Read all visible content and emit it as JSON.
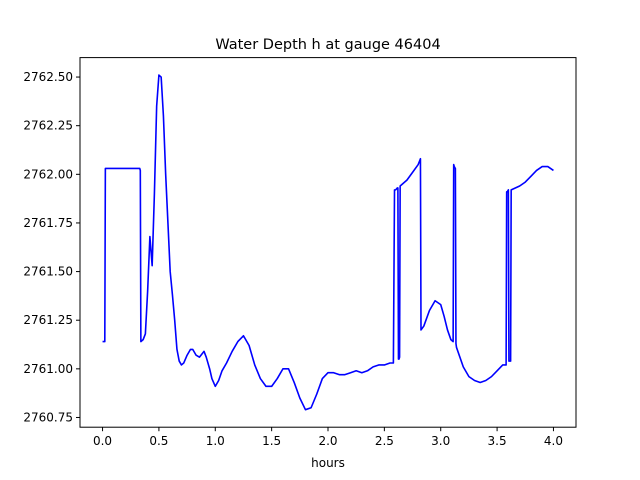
{
  "chart_data": {
    "type": "line",
    "title": "Water Depth h at gauge 46404",
    "xlabel": "hours",
    "ylabel": "",
    "xlim": [
      -0.2,
      4.2
    ],
    "ylim": [
      2760.7,
      2762.6
    ],
    "xticks": [
      0.0,
      0.5,
      1.0,
      1.5,
      2.0,
      2.5,
      3.0,
      3.5,
      4.0
    ],
    "xtick_labels": [
      "0.0",
      "0.5",
      "1.0",
      "1.5",
      "2.0",
      "2.5",
      "3.0",
      "3.5",
      "4.0"
    ],
    "yticks": [
      2760.75,
      2761.0,
      2761.25,
      2761.5,
      2761.75,
      2762.0,
      2762.25,
      2762.5
    ],
    "ytick_labels": [
      "2760.75",
      "2761.00",
      "2761.25",
      "2761.50",
      "2761.75",
      "2762.00",
      "2762.25",
      "2762.50"
    ],
    "grid": false,
    "series": [
      {
        "color": "#0000ff",
        "x": [
          0.0,
          0.02,
          0.025,
          0.1,
          0.2,
          0.3,
          0.33,
          0.335,
          0.34,
          0.36,
          0.38,
          0.4,
          0.42,
          0.44,
          0.46,
          0.48,
          0.5,
          0.52,
          0.54,
          0.56,
          0.58,
          0.6,
          0.62,
          0.64,
          0.66,
          0.68,
          0.7,
          0.72,
          0.75,
          0.78,
          0.8,
          0.83,
          0.86,
          0.9,
          0.92,
          0.95,
          0.97,
          1.0,
          1.03,
          1.06,
          1.1,
          1.15,
          1.2,
          1.25,
          1.3,
          1.35,
          1.4,
          1.45,
          1.5,
          1.55,
          1.6,
          1.65,
          1.7,
          1.75,
          1.8,
          1.85,
          1.9,
          1.95,
          2.0,
          2.05,
          2.1,
          2.15,
          2.2,
          2.25,
          2.3,
          2.35,
          2.4,
          2.45,
          2.5,
          2.55,
          2.58,
          2.59,
          2.6,
          2.615,
          2.62,
          2.625,
          2.63,
          2.635,
          2.64,
          2.7,
          2.75,
          2.8,
          2.82,
          2.825,
          2.85,
          2.9,
          2.95,
          3.0,
          3.03,
          3.06,
          3.09,
          3.11,
          3.115,
          3.12,
          3.13,
          3.135,
          3.14,
          3.2,
          3.25,
          3.3,
          3.35,
          3.4,
          3.45,
          3.5,
          3.55,
          3.58,
          3.585,
          3.59,
          3.6,
          3.605,
          3.61,
          3.62,
          3.625,
          3.7,
          3.75,
          3.8,
          3.85,
          3.9,
          3.95,
          4.0
        ],
        "y": [
          2761.14,
          2761.14,
          2762.03,
          2762.03,
          2762.03,
          2762.03,
          2762.03,
          2762.02,
          2761.14,
          2761.15,
          2761.18,
          2761.4,
          2761.68,
          2761.53,
          2761.9,
          2762.35,
          2762.51,
          2762.5,
          2762.3,
          2762.0,
          2761.75,
          2761.5,
          2761.38,
          2761.25,
          2761.1,
          2761.04,
          2761.02,
          2761.03,
          2761.07,
          2761.1,
          2761.1,
          2761.07,
          2761.06,
          2761.09,
          2761.06,
          2761.0,
          2760.95,
          2760.91,
          2760.94,
          2760.99,
          2761.03,
          2761.09,
          2761.14,
          2761.17,
          2761.12,
          2761.02,
          2760.95,
          2760.91,
          2760.91,
          2760.95,
          2761.0,
          2761.0,
          2760.93,
          2760.85,
          2760.79,
          2760.8,
          2760.87,
          2760.95,
          2760.98,
          2760.98,
          2760.97,
          2760.97,
          2760.98,
          2760.99,
          2760.98,
          2760.99,
          2761.01,
          2761.02,
          2761.02,
          2761.03,
          2761.03,
          2761.92,
          2761.92,
          2761.93,
          2761.93,
          2761.05,
          2761.05,
          2761.06,
          2761.94,
          2761.97,
          2762.01,
          2762.05,
          2762.08,
          2761.2,
          2761.22,
          2761.3,
          2761.35,
          2761.33,
          2761.27,
          2761.2,
          2761.15,
          2761.14,
          2762.05,
          2762.04,
          2762.03,
          2761.13,
          2761.11,
          2761.01,
          2760.96,
          2760.94,
          2760.93,
          2760.94,
          2760.96,
          2760.99,
          2761.02,
          2761.02,
          2761.91,
          2761.91,
          2761.92,
          2761.04,
          2761.04,
          2761.04,
          2761.92,
          2761.94,
          2761.96,
          2761.99,
          2762.02,
          2762.04,
          2762.04,
          2762.02
        ]
      }
    ]
  }
}
